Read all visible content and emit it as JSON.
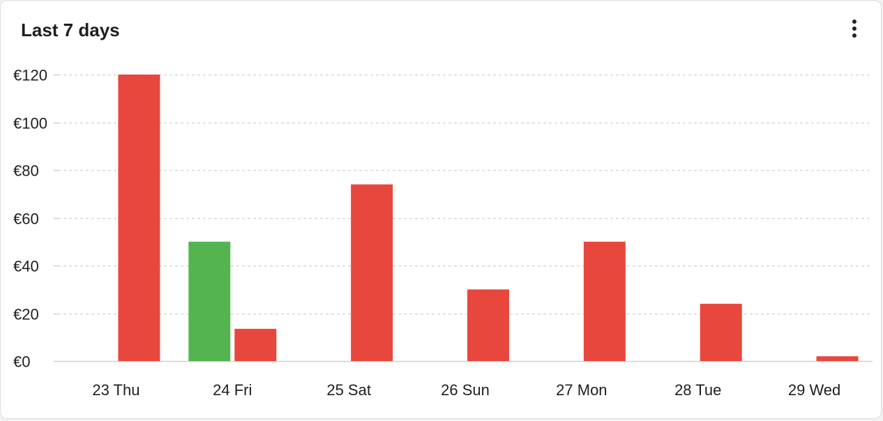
{
  "card": {
    "title": "Last 7 days",
    "menu_icon": "more-vertical-icon"
  },
  "colors": {
    "income": "#54b550",
    "expense": "#e8473d",
    "grid": "#d7d7d7",
    "axis": "#cfcfcf",
    "text": "#1e1e1e"
  },
  "chart_data": {
    "type": "bar",
    "categories": [
      "23 Thu",
      "24 Fri",
      "25 Sat",
      "26 Sun",
      "27 Mon",
      "28 Tue",
      "29 Wed"
    ],
    "series": [
      {
        "color": "#54b550",
        "values": [
          0,
          50,
          0,
          0,
          0,
          0,
          0
        ]
      },
      {
        "color": "#e8473d",
        "values": [
          120,
          13.5,
          74,
          30,
          50,
          24,
          2
        ]
      }
    ],
    "ylim": [
      0,
      120
    ],
    "y_ticks": [
      0,
      20,
      40,
      60,
      80,
      100,
      120
    ],
    "y_tick_labels": [
      "€0",
      "€20",
      "€40",
      "€60",
      "€80",
      "€100",
      "€120"
    ],
    "grid": true,
    "grid_style": "dashed",
    "legend": "none"
  }
}
